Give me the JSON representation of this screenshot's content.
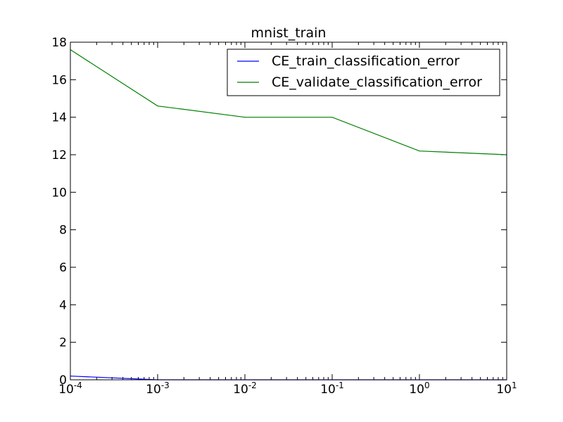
{
  "chart_data": {
    "type": "line",
    "title": "mnist_train",
    "xlabel": "",
    "ylabel": "",
    "xscale": "log",
    "xlim": [
      0.0001,
      10
    ],
    "ylim": [
      0,
      18
    ],
    "x_ticks": [
      {
        "value": 0.0001,
        "base": "10",
        "exp": "-4"
      },
      {
        "value": 0.001,
        "base": "10",
        "exp": "-3"
      },
      {
        "value": 0.01,
        "base": "10",
        "exp": "-2"
      },
      {
        "value": 0.1,
        "base": "10",
        "exp": "-1"
      },
      {
        "value": 1,
        "base": "10",
        "exp": "0"
      },
      {
        "value": 10,
        "base": "10",
        "exp": "1"
      }
    ],
    "y_ticks": [
      0,
      2,
      4,
      6,
      8,
      10,
      12,
      14,
      16,
      18
    ],
    "y_tick_labels": [
      "0",
      "2",
      "4",
      "6",
      "8",
      "10",
      "12",
      "14",
      "16",
      "18"
    ],
    "grid": false,
    "legend_position": "top-right",
    "series": [
      {
        "name": "CE_train_classification_error",
        "color": "#0000ff",
        "x": [
          0.0001,
          0.001,
          0.01,
          0.1,
          1,
          10
        ],
        "y": [
          0.2,
          0.0,
          0.0,
          0.0,
          0.0,
          0.0
        ]
      },
      {
        "name": "CE_validate_classification_error",
        "color": "#008000",
        "x": [
          0.0001,
          0.001,
          0.01,
          0.1,
          1,
          10
        ],
        "y": [
          17.6,
          14.6,
          14.0,
          14.0,
          12.2,
          12.0
        ]
      }
    ]
  }
}
